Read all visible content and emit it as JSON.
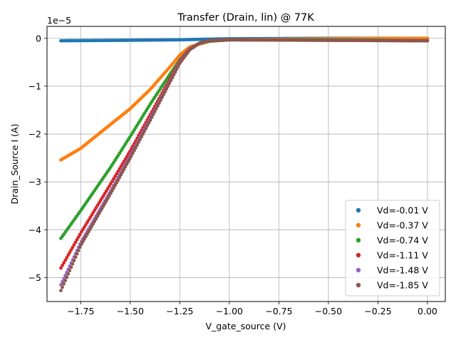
{
  "chart_data": {
    "type": "scatter",
    "title": "Transfer (Drain, lin) @ 77K",
    "xlabel": "V_gate_source (V)",
    "ylabel": "Drain_Source I (A)",
    "y_scale_label": "1e−5",
    "xlim": [
      -1.92,
      0.09
    ],
    "ylim": [
      -5.5,
      0.25
    ],
    "xticks": [
      -1.75,
      -1.5,
      -1.25,
      -1.0,
      -0.75,
      -0.5,
      -0.25,
      0.0
    ],
    "xtick_labels": [
      "−1.75",
      "−1.50",
      "−1.25",
      "−1.00",
      "−0.75",
      "−0.50",
      "−0.25",
      "0.00"
    ],
    "yticks": [
      0,
      -1,
      -2,
      -3,
      -4,
      -5
    ],
    "ytick_labels": [
      "0",
      "−1",
      "−2",
      "−3",
      "−4",
      "−5"
    ],
    "grid": true,
    "legend_position": "lower-right",
    "x_start": -1.85,
    "x_end": 0.0,
    "series": [
      {
        "name": "Vd=-0.01 V",
        "color": "#1f77b4",
        "points": [
          [
            -1.85,
            -0.05
          ],
          [
            -1.5,
            -0.04
          ],
          [
            -1.25,
            -0.03
          ],
          [
            -1.0,
            -0.01
          ],
          [
            -0.5,
            0.0
          ],
          [
            0.0,
            0.0
          ]
        ]
      },
      {
        "name": "Vd=-0.37 V",
        "color": "#ff7f0e",
        "points": [
          [
            -1.85,
            -2.54
          ],
          [
            -1.75,
            -2.3
          ],
          [
            -1.6,
            -1.8
          ],
          [
            -1.5,
            -1.47
          ],
          [
            -1.4,
            -1.07
          ],
          [
            -1.3,
            -0.6
          ],
          [
            -1.25,
            -0.35
          ],
          [
            -1.2,
            -0.18
          ],
          [
            -1.1,
            -0.06
          ],
          [
            -1.0,
            -0.03
          ],
          [
            -0.5,
            -0.01
          ],
          [
            0.0,
            0.0
          ]
        ]
      },
      {
        "name": "Vd=-0.74 V",
        "color": "#2ca02c",
        "points": [
          [
            -1.85,
            -4.18
          ],
          [
            -1.75,
            -3.6
          ],
          [
            -1.6,
            -2.7
          ],
          [
            -1.5,
            -2.05
          ],
          [
            -1.4,
            -1.38
          ],
          [
            -1.3,
            -0.75
          ],
          [
            -1.25,
            -0.45
          ],
          [
            -1.2,
            -0.22
          ],
          [
            -1.15,
            -0.1
          ],
          [
            -1.1,
            -0.06
          ],
          [
            -1.0,
            -0.03
          ],
          [
            -0.5,
            -0.03
          ],
          [
            0.0,
            -0.05
          ]
        ]
      },
      {
        "name": "Vd=-1.11 V",
        "color": "#d62728",
        "points": [
          [
            -1.85,
            -4.8
          ],
          [
            -1.75,
            -4.07
          ],
          [
            -1.6,
            -3.05
          ],
          [
            -1.5,
            -2.35
          ],
          [
            -1.4,
            -1.6
          ],
          [
            -1.3,
            -0.85
          ],
          [
            -1.25,
            -0.47
          ],
          [
            -1.2,
            -0.22
          ],
          [
            -1.15,
            -0.1
          ],
          [
            -1.1,
            -0.05
          ],
          [
            -1.0,
            -0.03
          ],
          [
            -0.5,
            -0.04
          ],
          [
            0.0,
            -0.05
          ]
        ]
      },
      {
        "name": "Vd=-1.48 V",
        "color": "#9467bd",
        "points": [
          [
            -1.85,
            -5.15
          ],
          [
            -1.75,
            -4.27
          ],
          [
            -1.6,
            -3.2
          ],
          [
            -1.5,
            -2.45
          ],
          [
            -1.4,
            -1.68
          ],
          [
            -1.3,
            -0.9
          ],
          [
            -1.25,
            -0.5
          ],
          [
            -1.2,
            -0.23
          ],
          [
            -1.15,
            -0.1
          ],
          [
            -1.1,
            -0.05
          ],
          [
            -1.0,
            -0.03
          ],
          [
            -0.5,
            -0.04
          ],
          [
            0.0,
            -0.05
          ]
        ]
      },
      {
        "name": "Vd=-1.85 V",
        "color": "#8c564b",
        "points": [
          [
            -1.85,
            -5.27
          ],
          [
            -1.75,
            -4.33
          ],
          [
            -1.6,
            -3.25
          ],
          [
            -1.5,
            -2.5
          ],
          [
            -1.4,
            -1.72
          ],
          [
            -1.3,
            -0.92
          ],
          [
            -1.25,
            -0.52
          ],
          [
            -1.2,
            -0.24
          ],
          [
            -1.15,
            -0.1
          ],
          [
            -1.1,
            -0.05
          ],
          [
            -1.0,
            -0.03
          ],
          [
            -0.5,
            -0.04
          ],
          [
            0.0,
            -0.05
          ]
        ]
      }
    ]
  }
}
